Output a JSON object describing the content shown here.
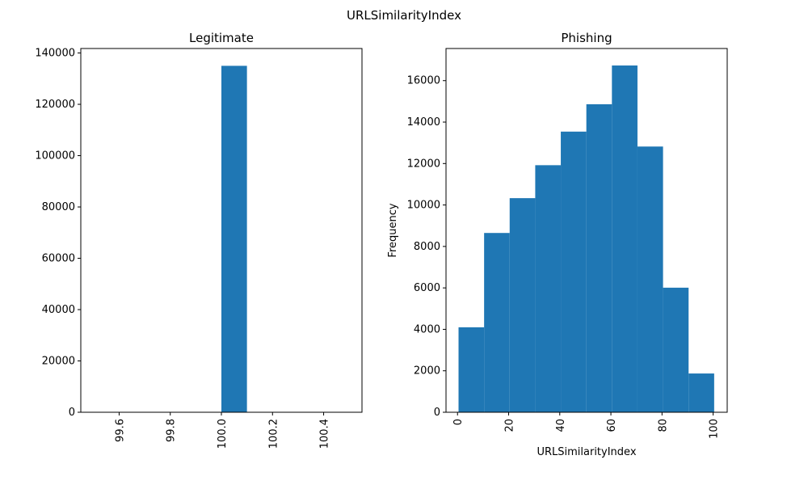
{
  "figure": {
    "suptitle": "URLSimilarityIndex"
  },
  "colors": {
    "bar": "#1f77b4",
    "axis": "#000000",
    "background": "#ffffff"
  },
  "chart_data": [
    {
      "type": "bar",
      "title": "Legitimate",
      "xlabel": "",
      "ylabel": "",
      "grid": false,
      "xlim": [
        99.45,
        100.55
      ],
      "ylim": [
        0,
        141750
      ],
      "x_ticks": [
        99.6,
        99.8,
        100.0,
        100.2,
        100.4
      ],
      "x_tick_labels": [
        "99.6",
        "99.8",
        "100.0",
        "100.2",
        "100.4"
      ],
      "y_ticks": [
        0,
        20000,
        40000,
        60000,
        80000,
        100000,
        120000,
        140000
      ],
      "y_tick_labels": [
        "0",
        "20000",
        "40000",
        "60000",
        "80000",
        "100000",
        "120000",
        "140000"
      ],
      "bins": [
        {
          "x0": 99.5,
          "x1": 99.6,
          "value": 0
        },
        {
          "x0": 99.6,
          "x1": 99.7,
          "value": 0
        },
        {
          "x0": 99.7,
          "x1": 99.8,
          "value": 0
        },
        {
          "x0": 99.8,
          "x1": 99.9,
          "value": 0
        },
        {
          "x0": 99.9,
          "x1": 100.0,
          "value": 0
        },
        {
          "x0": 100.0,
          "x1": 100.1,
          "value": 135000
        },
        {
          "x0": 100.1,
          "x1": 100.2,
          "value": 0
        },
        {
          "x0": 100.2,
          "x1": 100.3,
          "value": 0
        },
        {
          "x0": 100.3,
          "x1": 100.4,
          "value": 0
        },
        {
          "x0": 100.4,
          "x1": 100.5,
          "value": 0
        }
      ]
    },
    {
      "type": "bar",
      "title": "Phishing",
      "xlabel": "URLSimilarityIndex",
      "ylabel": "Frequency",
      "grid": false,
      "xlim": [
        -4.5,
        105.5
      ],
      "ylim": [
        0,
        17550
      ],
      "x_ticks": [
        0,
        20,
        40,
        60,
        80,
        100
      ],
      "x_tick_labels": [
        "0",
        "20",
        "40",
        "60",
        "80",
        "100"
      ],
      "y_ticks": [
        0,
        2000,
        4000,
        6000,
        8000,
        10000,
        12000,
        14000,
        16000
      ],
      "y_tick_labels": [
        "0",
        "2000",
        "4000",
        "6000",
        "8000",
        "10000",
        "12000",
        "14000",
        "16000"
      ],
      "bins": [
        {
          "x0": 0.4,
          "x1": 10.4,
          "value": 4100
        },
        {
          "x0": 10.4,
          "x1": 20.4,
          "value": 8650
        },
        {
          "x0": 20.4,
          "x1": 30.4,
          "value": 10330
        },
        {
          "x0": 30.4,
          "x1": 40.4,
          "value": 11920
        },
        {
          "x0": 40.4,
          "x1": 50.4,
          "value": 13540
        },
        {
          "x0": 50.4,
          "x1": 60.4,
          "value": 14860
        },
        {
          "x0": 60.4,
          "x1": 70.4,
          "value": 16730
        },
        {
          "x0": 70.4,
          "x1": 80.4,
          "value": 12820
        },
        {
          "x0": 80.4,
          "x1": 90.4,
          "value": 6010
        },
        {
          "x0": 90.4,
          "x1": 100.4,
          "value": 1870
        }
      ]
    }
  ]
}
